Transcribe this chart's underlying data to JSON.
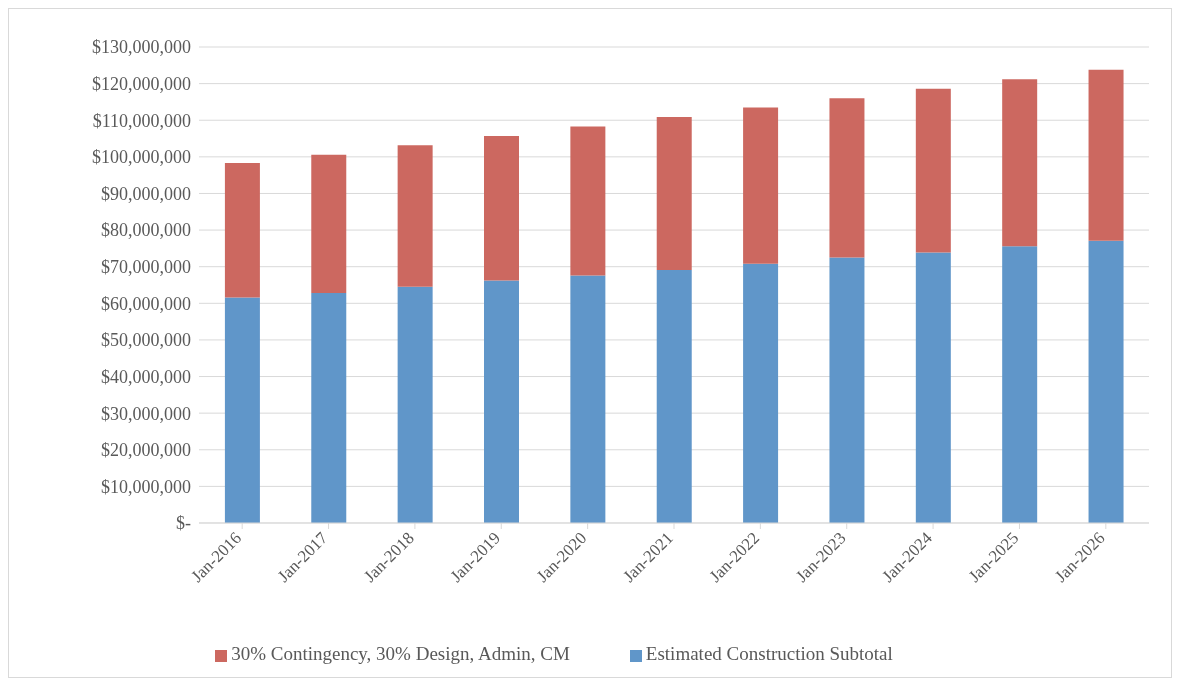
{
  "chart_data": {
    "type": "bar",
    "stacked": true,
    "categories": [
      "Jan-2016",
      "Jan-2017",
      "Jan-2018",
      "Jan-2019",
      "Jan-2020",
      "Jan-2021",
      "Jan-2022",
      "Jan-2023",
      "Jan-2024",
      "Jan-2025",
      "Jan-2026"
    ],
    "series": [
      {
        "name": "Estimated Construction Subtotal",
        "color": "#6096c9",
        "values": [
          61600000,
          62800000,
          64500000,
          66200000,
          67600000,
          69100000,
          70800000,
          72500000,
          73900000,
          75600000,
          77100000
        ]
      },
      {
        "name": "30% Contingency, 30% Design, Admin, CM",
        "color": "#cc6860",
        "values": [
          36700000,
          37800000,
          38700000,
          39500000,
          40700000,
          41800000,
          42700000,
          43500000,
          44700000,
          45600000,
          46700000
        ]
      }
    ],
    "ylim": [
      0,
      130000000
    ],
    "yticks": [
      {
        "value": 0,
        "label": "$-"
      },
      {
        "value": 10000000,
        "label": "$10,000,000"
      },
      {
        "value": 20000000,
        "label": "$20,000,000"
      },
      {
        "value": 30000000,
        "label": "$30,000,000"
      },
      {
        "value": 40000000,
        "label": "$40,000,000"
      },
      {
        "value": 50000000,
        "label": "$50,000,000"
      },
      {
        "value": 60000000,
        "label": "$60,000,000"
      },
      {
        "value": 70000000,
        "label": "$70,000,000"
      },
      {
        "value": 80000000,
        "label": "$80,000,000"
      },
      {
        "value": 90000000,
        "label": "$90,000,000"
      },
      {
        "value": 100000000,
        "label": "$100,000,000"
      },
      {
        "value": 110000000,
        "label": "$110,000,000"
      },
      {
        "value": 120000000,
        "label": "$120,000,000"
      },
      {
        "value": 130000000,
        "label": "$130,000,000"
      }
    ],
    "grid": "y",
    "legend": "bottom"
  }
}
